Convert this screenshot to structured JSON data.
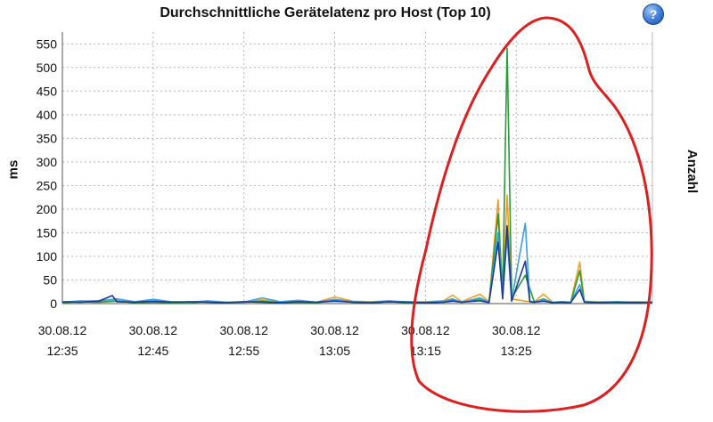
{
  "chart_data": {
    "type": "line",
    "title": "Durchschnittliche Gerätelatenz pro Host (Top 10)",
    "ylabel": "ms",
    "y2label": "Anzahl",
    "ylim": [
      0,
      575
    ],
    "yticks": [
      0,
      50,
      100,
      150,
      200,
      250,
      300,
      350,
      400,
      450,
      500,
      550
    ],
    "xlim": [
      0,
      65
    ],
    "x_ticks": [
      {
        "pos": 0,
        "date": "30.08.12",
        "time": "12:35"
      },
      {
        "pos": 10,
        "date": "30.08.12",
        "time": "12:45"
      },
      {
        "pos": 20,
        "date": "30.08.12",
        "time": "12:55"
      },
      {
        "pos": 30,
        "date": "30.08.12",
        "time": "13:05"
      },
      {
        "pos": 40,
        "date": "30.08.12",
        "time": "13:15"
      },
      {
        "pos": 50,
        "date": "30.08.12",
        "time": "13:25"
      }
    ],
    "grid": true,
    "series": [
      {
        "color": "#f0a020",
        "points": [
          [
            0,
            3
          ],
          [
            2,
            6
          ],
          [
            4,
            4
          ],
          [
            6,
            7
          ],
          [
            8,
            3
          ],
          [
            10,
            5
          ],
          [
            12,
            4
          ],
          [
            14,
            3
          ],
          [
            16,
            6
          ],
          [
            18,
            3
          ],
          [
            20,
            4
          ],
          [
            22,
            8
          ],
          [
            24,
            3
          ],
          [
            26,
            5
          ],
          [
            28,
            3
          ],
          [
            30,
            14
          ],
          [
            32,
            5
          ],
          [
            34,
            4
          ],
          [
            36,
            6
          ],
          [
            38,
            3
          ],
          [
            40,
            4
          ],
          [
            42,
            6
          ],
          [
            43,
            18
          ],
          [
            44,
            4
          ],
          [
            46,
            20
          ],
          [
            47,
            4
          ],
          [
            48,
            220
          ],
          [
            48.5,
            15
          ],
          [
            49,
            230
          ],
          [
            49.5,
            10
          ],
          [
            51,
            5
          ],
          [
            52,
            4
          ],
          [
            53,
            20
          ],
          [
            54,
            3
          ],
          [
            55,
            4
          ],
          [
            56,
            3
          ],
          [
            57,
            88
          ],
          [
            57.5,
            5
          ],
          [
            59,
            4
          ],
          [
            61,
            3
          ],
          [
            63,
            4
          ],
          [
            65,
            3
          ]
        ]
      },
      {
        "color": "#2a9a3a",
        "points": [
          [
            0,
            2
          ],
          [
            2,
            4
          ],
          [
            4,
            3
          ],
          [
            6,
            5
          ],
          [
            8,
            2
          ],
          [
            10,
            3
          ],
          [
            12,
            2
          ],
          [
            14,
            2
          ],
          [
            16,
            4
          ],
          [
            18,
            2
          ],
          [
            20,
            3
          ],
          [
            22,
            5
          ],
          [
            24,
            2
          ],
          [
            26,
            3
          ],
          [
            28,
            2
          ],
          [
            30,
            6
          ],
          [
            32,
            3
          ],
          [
            34,
            2
          ],
          [
            36,
            4
          ],
          [
            38,
            2
          ],
          [
            40,
            3
          ],
          [
            42,
            4
          ],
          [
            43,
            8
          ],
          [
            44,
            3
          ],
          [
            46,
            10
          ],
          [
            47,
            3
          ],
          [
            48,
            190
          ],
          [
            48.5,
            20
          ],
          [
            49,
            540
          ],
          [
            49.5,
            12
          ],
          [
            51,
            60
          ],
          [
            52,
            3
          ],
          [
            53,
            10
          ],
          [
            54,
            2
          ],
          [
            55,
            3
          ],
          [
            56,
            2
          ],
          [
            57,
            70
          ],
          [
            57.5,
            4
          ],
          [
            59,
            3
          ],
          [
            61,
            2
          ],
          [
            63,
            3
          ],
          [
            65,
            2
          ]
        ]
      },
      {
        "color": "#3aa0e0",
        "points": [
          [
            0,
            3
          ],
          [
            2,
            5
          ],
          [
            4,
            6
          ],
          [
            6,
            10
          ],
          [
            8,
            4
          ],
          [
            10,
            9
          ],
          [
            12,
            4
          ],
          [
            14,
            3
          ],
          [
            16,
            5
          ],
          [
            18,
            3
          ],
          [
            20,
            3
          ],
          [
            22,
            12
          ],
          [
            24,
            4
          ],
          [
            26,
            7
          ],
          [
            28,
            3
          ],
          [
            30,
            9
          ],
          [
            32,
            4
          ],
          [
            34,
            3
          ],
          [
            36,
            5
          ],
          [
            38,
            4
          ],
          [
            40,
            3
          ],
          [
            42,
            5
          ],
          [
            43,
            10
          ],
          [
            44,
            3
          ],
          [
            46,
            12
          ],
          [
            47,
            3
          ],
          [
            48,
            150
          ],
          [
            48.5,
            20
          ],
          [
            49,
            140
          ],
          [
            49.5,
            8
          ],
          [
            51,
            170
          ],
          [
            51.5,
            5
          ],
          [
            52,
            3
          ],
          [
            53,
            8
          ],
          [
            54,
            3
          ],
          [
            55,
            4
          ],
          [
            56,
            3
          ],
          [
            57,
            40
          ],
          [
            57.5,
            4
          ],
          [
            59,
            3
          ],
          [
            61,
            4
          ],
          [
            63,
            3
          ],
          [
            65,
            3
          ]
        ]
      },
      {
        "color": "#1a3a9a",
        "points": [
          [
            0,
            4
          ],
          [
            2,
            3
          ],
          [
            4,
            5
          ],
          [
            5.5,
            17
          ],
          [
            6,
            4
          ],
          [
            8,
            3
          ],
          [
            10,
            5
          ],
          [
            12,
            3
          ],
          [
            14,
            4
          ],
          [
            16,
            3
          ],
          [
            18,
            2
          ],
          [
            20,
            4
          ],
          [
            22,
            3
          ],
          [
            24,
            2
          ],
          [
            26,
            4
          ],
          [
            28,
            3
          ],
          [
            30,
            5
          ],
          [
            32,
            3
          ],
          [
            34,
            2
          ],
          [
            36,
            4
          ],
          [
            38,
            3
          ],
          [
            40,
            2
          ],
          [
            42,
            3
          ],
          [
            43,
            5
          ],
          [
            44,
            3
          ],
          [
            46,
            6
          ],
          [
            47,
            2
          ],
          [
            48,
            130
          ],
          [
            48.5,
            10
          ],
          [
            49,
            165
          ],
          [
            49.5,
            5
          ],
          [
            51,
            90
          ],
          [
            51.5,
            4
          ],
          [
            52,
            3
          ],
          [
            53,
            5
          ],
          [
            54,
            2
          ],
          [
            55,
            3
          ],
          [
            56,
            2
          ],
          [
            57,
            30
          ],
          [
            57.5,
            3
          ],
          [
            59,
            2
          ],
          [
            61,
            3
          ],
          [
            63,
            2
          ],
          [
            65,
            3
          ]
        ]
      }
    ]
  },
  "colors": {
    "annotation": "#dd1f1f"
  }
}
